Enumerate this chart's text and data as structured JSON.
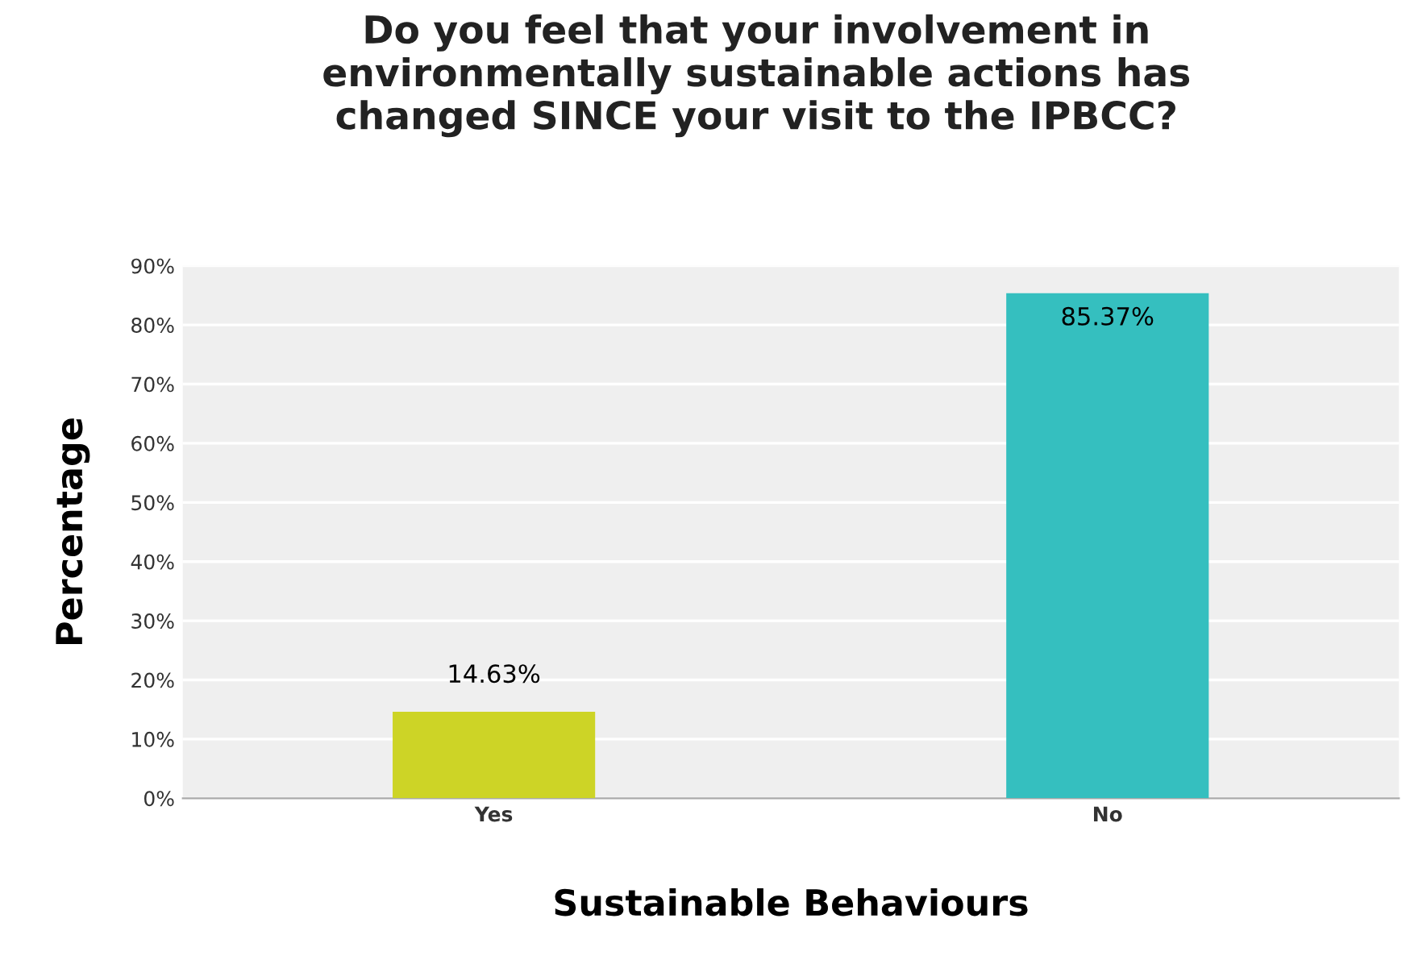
{
  "chart_data": {
    "type": "bar",
    "title": "Do you feel that your involvement in\nenvironmentally sustainable actions has\nchanged SINCE your visit to the IPBCC?",
    "xlabel": "Sustainable Behaviours",
    "ylabel": "Percentage",
    "categories": [
      "Yes",
      "No"
    ],
    "values": [
      14.63,
      85.37
    ],
    "colors": [
      "#cdd426",
      "#35bfbf"
    ],
    "value_labels": [
      "14.63%",
      "85.37%"
    ],
    "ylim": [
      0,
      90
    ],
    "yticks": [
      {
        "value": 0,
        "label": "0%"
      },
      {
        "value": 10,
        "label": "10%"
      },
      {
        "value": 20,
        "label": "20%"
      },
      {
        "value": 30,
        "label": "30%"
      },
      {
        "value": 40,
        "label": "40%"
      },
      {
        "value": 50,
        "label": "50%"
      },
      {
        "value": 60,
        "label": "60%"
      },
      {
        "value": 70,
        "label": "70%"
      },
      {
        "value": 80,
        "label": "80%"
      },
      {
        "value": 90,
        "label": "90%"
      }
    ],
    "grid": "y"
  }
}
